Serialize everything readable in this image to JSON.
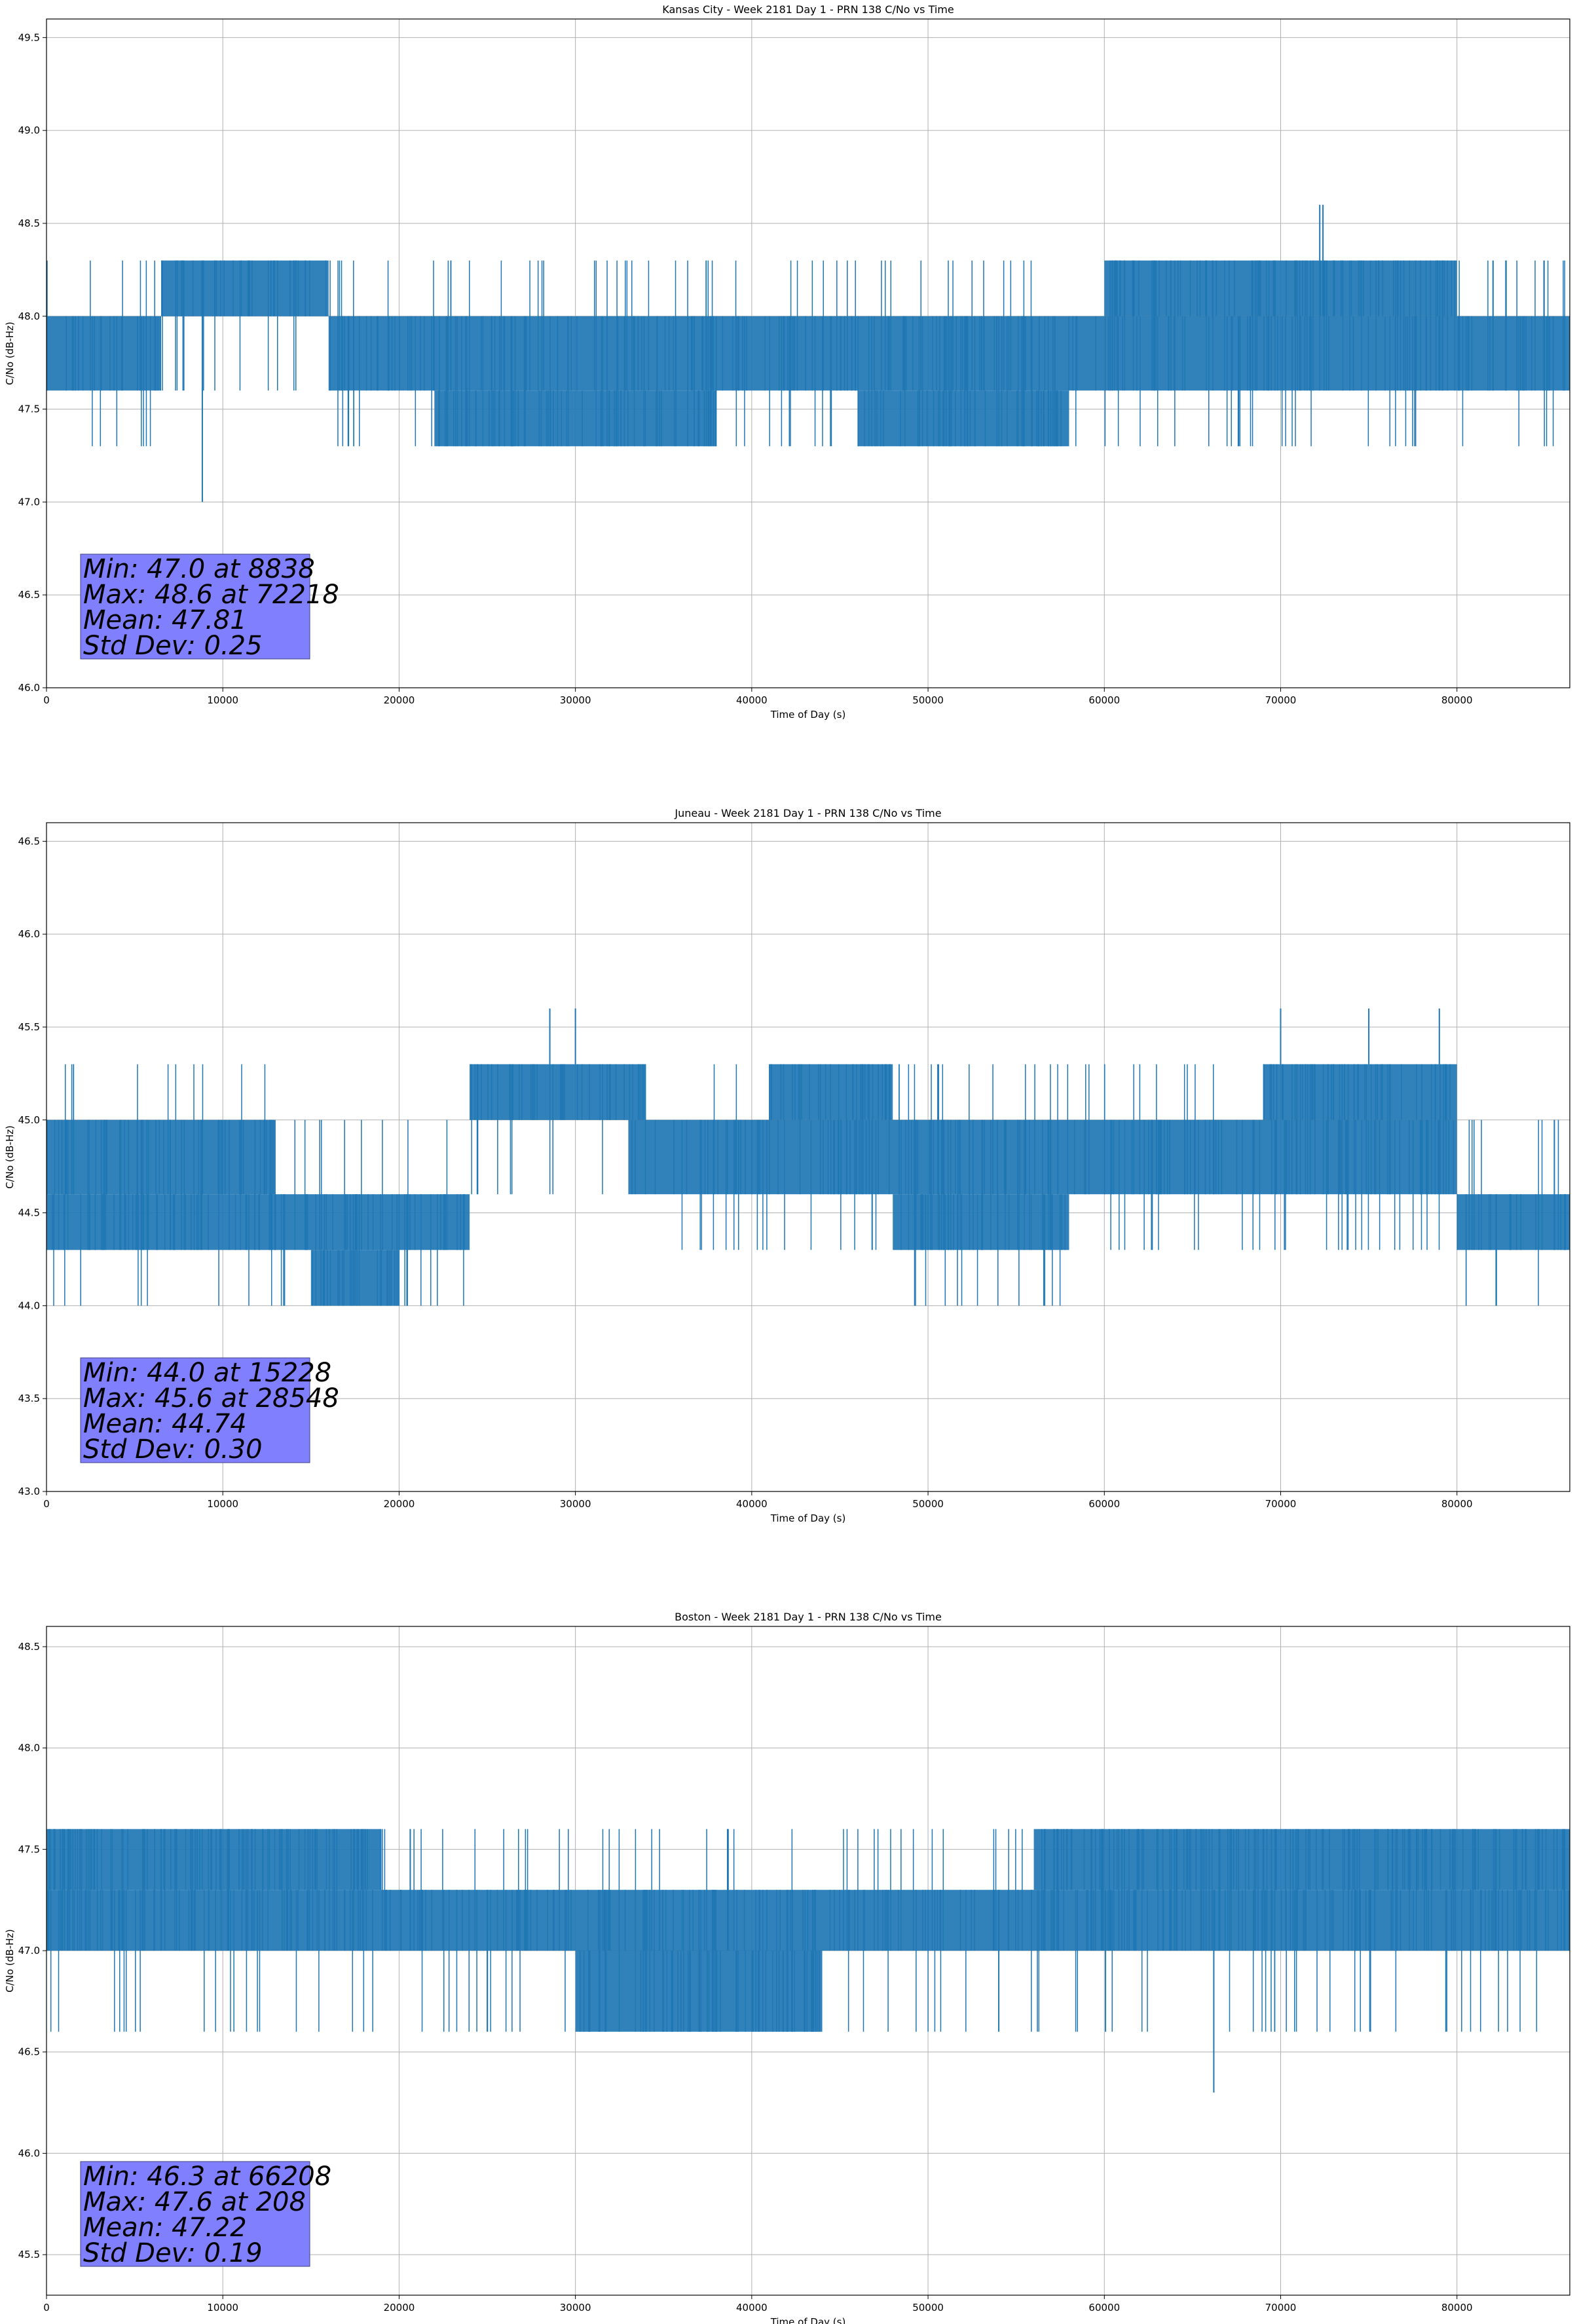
{
  "figure": {
    "line_color": "#1f77b4",
    "stats_box_color": "#8080ff",
    "grid_color": "#b0b0b0"
  },
  "chart_data": [
    {
      "type": "line",
      "title": "Kansas City - Week 2181 Day 1 - PRN 138 C/No vs Time",
      "xlabel": "Time of Day (s)",
      "ylabel": "C/No (dB-Hz)",
      "xlim": [
        0,
        86400
      ],
      "ylim": [
        46.0,
        49.6
      ],
      "xticks": [
        0,
        10000,
        20000,
        30000,
        40000,
        50000,
        60000,
        70000,
        80000
      ],
      "yticks": [
        "46.0",
        "46.5",
        "47.0",
        "47.5",
        "48.0",
        "48.5",
        "49.0",
        "49.5"
      ],
      "grid": true,
      "levels": [
        47.3,
        47.6,
        48.0,
        48.3
      ],
      "band_segments": [
        {
          "x0": 0,
          "x1": 6500,
          "lo": 47.6,
          "hi": 48.0
        },
        {
          "x0": 6500,
          "x1": 16000,
          "lo": 48.0,
          "hi": 48.3
        },
        {
          "x0": 16000,
          "x1": 60000,
          "lo": 47.6,
          "hi": 48.0
        },
        {
          "x0": 22000,
          "x1": 38000,
          "lo": 47.3,
          "hi": 47.6
        },
        {
          "x0": 46000,
          "x1": 58000,
          "lo": 47.3,
          "hi": 47.6
        },
        {
          "x0": 60000,
          "x1": 80000,
          "lo": 48.0,
          "hi": 48.3
        },
        {
          "x0": 60000,
          "x1": 86400,
          "lo": 47.6,
          "hi": 48.0
        }
      ],
      "spikes": [
        {
          "x": 8838,
          "y": 47.0
        },
        {
          "x": 72218,
          "y": 48.6
        },
        {
          "x": 72400,
          "y": 48.6
        }
      ],
      "stats": {
        "min": "Min: 47.0 at 8838",
        "max": "Max: 48.6 at 72218",
        "mean": "Mean: 47.81",
        "std": "Std Dev: 0.25"
      }
    },
    {
      "type": "line",
      "title": "Juneau - Week 2181 Day 1 - PRN 138 C/No vs Time",
      "xlabel": "Time of Day (s)",
      "ylabel": "C/No (dB-Hz)",
      "xlim": [
        0,
        86400
      ],
      "ylim": [
        43.0,
        46.6
      ],
      "xticks": [
        0,
        10000,
        20000,
        30000,
        40000,
        50000,
        60000,
        70000,
        80000
      ],
      "yticks": [
        "43.0",
        "43.5",
        "44.0",
        "44.5",
        "45.0",
        "45.5",
        "46.0",
        "46.5"
      ],
      "grid": true,
      "levels": [
        44.0,
        44.3,
        44.6,
        45.0,
        45.3
      ],
      "band_segments": [
        {
          "x0": 0,
          "x1": 24000,
          "lo": 44.3,
          "hi": 44.6
        },
        {
          "x0": 0,
          "x1": 13000,
          "lo": 44.6,
          "hi": 45.0
        },
        {
          "x0": 15000,
          "x1": 20000,
          "lo": 44.0,
          "hi": 44.3
        },
        {
          "x0": 24000,
          "x1": 34000,
          "lo": 45.0,
          "hi": 45.3
        },
        {
          "x0": 33000,
          "x1": 80000,
          "lo": 44.6,
          "hi": 45.0
        },
        {
          "x0": 41000,
          "x1": 48000,
          "lo": 45.0,
          "hi": 45.3
        },
        {
          "x0": 48000,
          "x1": 58000,
          "lo": 44.3,
          "hi": 44.6
        },
        {
          "x0": 69000,
          "x1": 80000,
          "lo": 45.0,
          "hi": 45.3
        },
        {
          "x0": 80000,
          "x1": 86400,
          "lo": 44.3,
          "hi": 44.6
        }
      ],
      "spikes": [
        {
          "x": 28548,
          "y": 45.6
        },
        {
          "x": 30000,
          "y": 45.6
        },
        {
          "x": 70000,
          "y": 45.6
        },
        {
          "x": 75000,
          "y": 45.6
        },
        {
          "x": 79000,
          "y": 45.6
        }
      ],
      "stats": {
        "min": "Min: 44.0 at 15228",
        "max": "Max: 45.6 at 28548",
        "mean": "Mean: 44.74",
        "std": "Std Dev: 0.30"
      }
    },
    {
      "type": "line",
      "title": "Boston - Week 2181 Day 1 - PRN 138 C/No vs Time",
      "xlabel": "Time of Day (s)",
      "ylabel": "C/No (dB-Hz)",
      "xlim": [
        0,
        86400
      ],
      "ylim": [
        45.3,
        48.6
      ],
      "xticks": [
        0,
        10000,
        20000,
        30000,
        40000,
        50000,
        60000,
        70000,
        80000
      ],
      "yticks": [
        "45.5",
        "46.0",
        "46.5",
        "47.0",
        "47.5",
        "48.0",
        "48.5"
      ],
      "grid": true,
      "levels": [
        46.6,
        47.0,
        47.3,
        47.6
      ],
      "band_segments": [
        {
          "x0": 0,
          "x1": 86400,
          "lo": 47.0,
          "hi": 47.3
        },
        {
          "x0": 0,
          "x1": 19000,
          "lo": 47.3,
          "hi": 47.6
        },
        {
          "x0": 30000,
          "x1": 44000,
          "lo": 46.6,
          "hi": 47.0
        },
        {
          "x0": 56000,
          "x1": 61000,
          "lo": 47.3,
          "hi": 47.6
        },
        {
          "x0": 61000,
          "x1": 86400,
          "lo": 47.3,
          "hi": 47.6
        }
      ],
      "spikes": [
        {
          "x": 208,
          "y": 47.6
        },
        {
          "x": 66208,
          "y": 46.3
        }
      ],
      "stats": {
        "min": "Min: 46.3 at 66208",
        "max": "Max: 47.6 at 208",
        "mean": "Mean: 47.22",
        "std": "Std Dev: 0.19"
      }
    }
  ]
}
